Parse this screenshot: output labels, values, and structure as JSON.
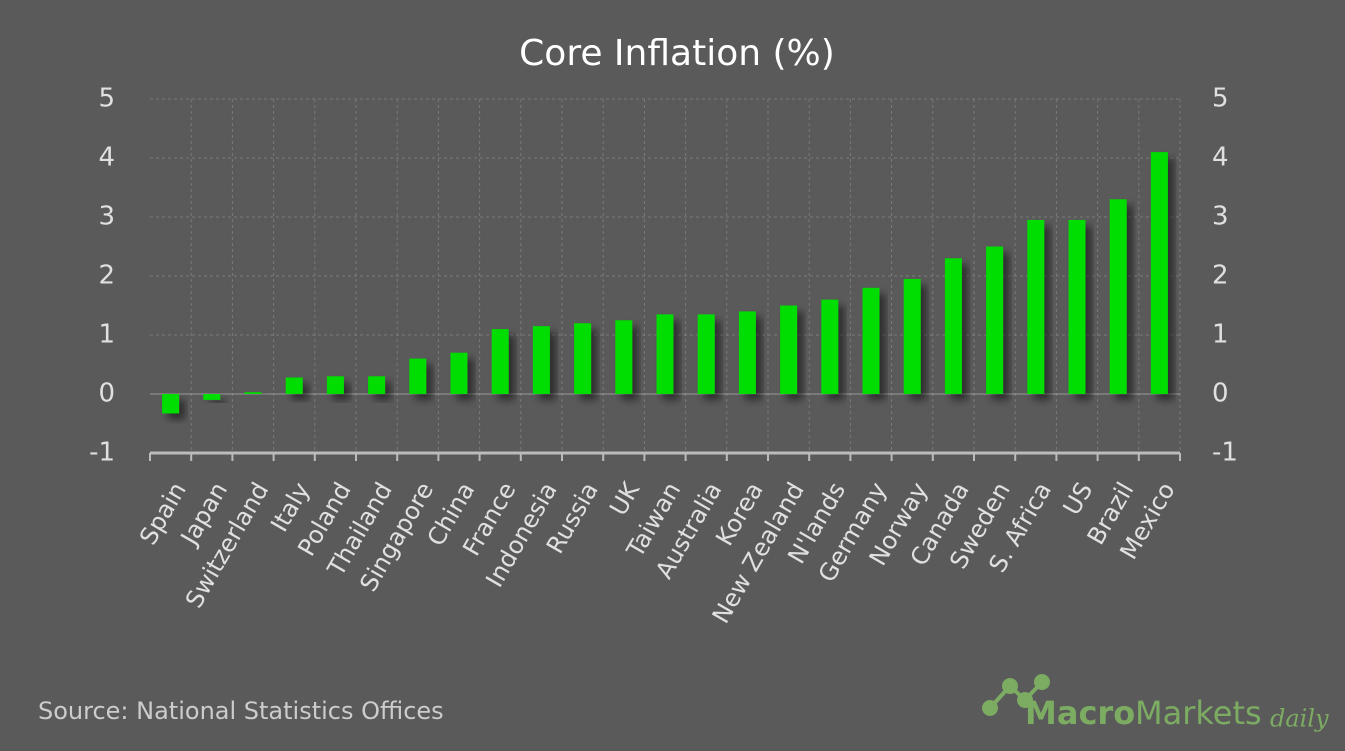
{
  "chart_data": {
    "type": "bar",
    "title": "Core Inflation (%)",
    "categories": [
      "Spain",
      "Japan",
      "Switzerland",
      "Italy",
      "Poland",
      "Thailand",
      "Singapore",
      "China",
      "France",
      "Indonesia",
      "Russia",
      "UK",
      "Taiwan",
      "Australia",
      "Korea",
      "New Zealand",
      "N'lands",
      "Germany",
      "Norway",
      "Canada",
      "Sweden",
      "S. Africa",
      "US",
      "Brazil",
      "Mexico"
    ],
    "values": [
      -0.33,
      -0.1,
      0.03,
      0.28,
      0.3,
      0.3,
      0.6,
      0.7,
      1.1,
      1.15,
      1.2,
      1.25,
      1.35,
      1.35,
      1.4,
      1.5,
      1.6,
      1.8,
      1.95,
      2.3,
      2.5,
      2.95,
      2.95,
      3.3,
      4.1
    ],
    "color": "#00dd00",
    "ylim": [
      -1,
      5
    ],
    "yticks": [
      -1,
      0,
      1,
      2,
      3,
      4,
      5
    ],
    "y2lim": [
      -1,
      5
    ],
    "y2ticks": [
      -1,
      0,
      1,
      2,
      3,
      4,
      5
    ],
    "grid": true,
    "source": "Source: National Statistics Offices"
  },
  "logo": {
    "part1": "Macro",
    "part2": "Markets",
    "part3": "daily"
  }
}
